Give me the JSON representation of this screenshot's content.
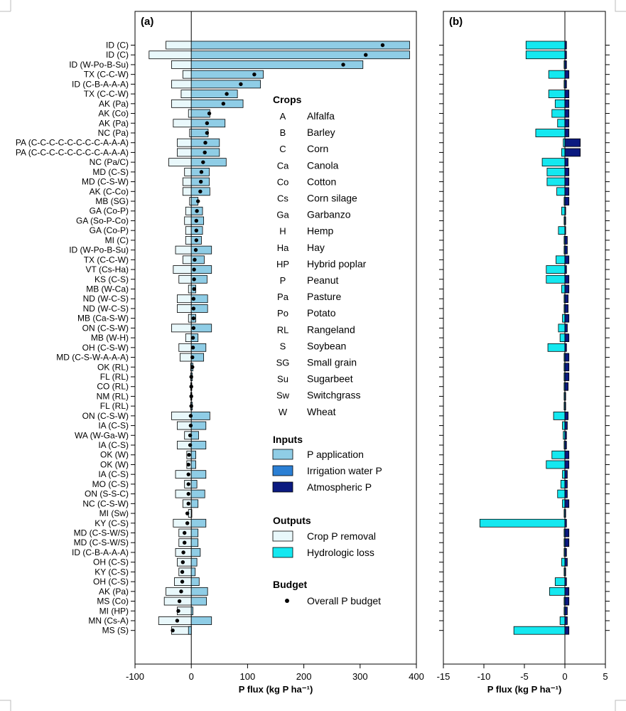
{
  "chart_data": [
    {
      "type": "bar",
      "orientation": "horizontal",
      "panel_label": "(a)",
      "xlabel": "P flux (kg P ha⁻¹)",
      "xlim": [
        -100,
        400
      ],
      "xticks": [
        -100,
        0,
        100,
        200,
        300,
        400
      ],
      "categories": [
        "ID (C)",
        "ID (C)",
        "ID (W-Po-B-Su)",
        "TX (C-C-W)",
        "ID (C-B-A-A-A)",
        "TX (C-C-W)",
        "AK (Pa)",
        "AK (Co)",
        "AK (Pa)",
        "NC (Pa)",
        "PA (C-C-C-C-C-C-C-C-A-A-A)",
        "PA (C-C-C-C-C-C-C-C-A-A-A)",
        "NC (Pa/C)",
        "MD (C-S)",
        "MD (C-S-W)",
        "AK (C-Co)",
        "MB (SG)",
        "GA (Co-P)",
        "GA (So-P-Co)",
        "GA (Co-P)",
        "MI (C)",
        "ID (W-Po-B-Su)",
        "TX (C-C-W)",
        "VT (Cs-Ha)",
        "KS (C-S)",
        "MB (W-Ca)",
        "ND (W-C-S)",
        "ND (W-C-S)",
        "MB (Ca-S-W)",
        "ON (C-S-W)",
        "MB (W-H)",
        "OH (C-S-W)",
        "MD (C-S-W-A-A-A)",
        "OK (RL)",
        "FL (RL)",
        "CO (RL)",
        "NM (RL)",
        "FL (RL)",
        "ON (C-S-W)",
        "IA (C-S)",
        "WA (W-Ga-W)",
        "IA (C-S)",
        "OK (W)",
        "OK (W)",
        "IA (C-S)",
        "MO (C-S)",
        "ON (S-S-C)",
        "NC (C-S-W)",
        "MI (Sw)",
        "KY (C-S)",
        "MD (C-S-W/S)",
        "MD (C-S-W/S)",
        "ID (C-B-A-A-A)",
        "OH (C-S)",
        "KY (C-S)",
        "OH (C-S)",
        "AK (Pa)",
        "MS (Co)",
        "MI (HP)",
        "MN (Cs-A)",
        "MS (S)"
      ],
      "series": [
        {
          "name": "P application",
          "values": [
            388,
            388,
            305,
            128,
            123,
            82,
            92,
            33,
            60,
            30,
            50,
            50,
            62,
            32,
            32,
            33,
            12,
            20,
            22,
            20,
            18,
            36,
            23,
            36,
            28,
            8,
            29,
            29,
            8,
            36,
            12,
            26,
            22,
            3,
            2,
            1,
            1,
            2,
            33,
            26,
            13,
            26,
            8,
            8,
            26,
            10,
            24,
            12,
            1,
            26,
            12,
            12,
            16,
            10,
            7,
            14,
            29,
            27,
            3,
            36,
            -5
          ]
        },
        {
          "name": "Crop P removal",
          "values": [
            -45,
            -75,
            -35,
            -15,
            -35,
            -18,
            -35,
            -5,
            -32,
            -3,
            -25,
            -25,
            -40,
            -12,
            -15,
            -15,
            -3,
            -10,
            -12,
            -10,
            -10,
            -28,
            -15,
            -32,
            -22,
            -5,
            -25,
            -25,
            -5,
            -35,
            -10,
            -22,
            -20,
            -1,
            -1,
            -1,
            -1,
            -1,
            -35,
            -25,
            -12,
            -25,
            -8,
            -8,
            -28,
            -12,
            -28,
            -15,
            -5,
            -32,
            -22,
            -22,
            -28,
            -25,
            -22,
            -30,
            -45,
            -48,
            -25,
            -58,
            -35
          ]
        },
        {
          "name": "Overall P budget",
          "values": [
            340,
            310,
            270,
            112,
            88,
            63,
            57,
            32,
            28,
            28,
            25,
            24,
            21,
            18,
            17,
            16,
            12,
            10,
            9,
            9,
            9,
            8,
            6,
            5,
            5,
            5,
            4,
            4,
            4,
            4,
            3,
            3,
            2,
            2,
            0,
            0,
            0,
            0,
            -1,
            -1,
            -2,
            -2,
            -4,
            -5,
            -5,
            -5,
            -5,
            -5,
            -7,
            -7,
            -12,
            -12,
            -14,
            -15,
            -16,
            -16,
            -18,
            -21,
            -23,
            -25,
            -33
          ]
        }
      ]
    },
    {
      "type": "bar",
      "orientation": "horizontal",
      "panel_label": "(b)",
      "xlabel": "P flux (kg P ha⁻¹)",
      "xlim": [
        -15,
        5
      ],
      "xticks": [
        -15,
        -10,
        -5,
        0,
        5
      ],
      "series": [
        {
          "name": "Hydrologic loss",
          "values": [
            -4.8,
            -4.8,
            -0.1,
            -2.0,
            -0.1,
            -2.0,
            -1.2,
            -1.6,
            -0.9,
            -3.6,
            -0.2,
            -0.4,
            -2.8,
            -2.2,
            -2.2,
            -1.0,
            -0.1,
            -0.4,
            -0.1,
            -0.8,
            -0.1,
            -0.1,
            -1.1,
            -2.3,
            -2.3,
            -0.4,
            -0.1,
            -0.1,
            -0.3,
            -0.8,
            -0.6,
            -2.1,
            -0.1,
            -0.1,
            -0.1,
            -0.1,
            -0.1,
            -0.1,
            -1.4,
            -0.3,
            -0.2,
            -0.1,
            -1.6,
            -2.3,
            -0.3,
            -0.5,
            -0.9,
            -0.3,
            -0.1,
            -10.5,
            -0.1,
            -0.1,
            -0.1,
            -0.4,
            -0.1,
            -1.2,
            -1.9,
            -0.1,
            -0.1,
            -0.6,
            -6.3
          ]
        },
        {
          "name": "Atmospheric P",
          "values": [
            0.2,
            0.2,
            0.2,
            0.5,
            0.2,
            0.5,
            0.5,
            0.5,
            0.5,
            0.5,
            1.9,
            1.9,
            0.4,
            0.5,
            0.5,
            0.5,
            0.5,
            0.1,
            0.1,
            0.1,
            0.3,
            0.3,
            0.5,
            0.2,
            0.5,
            0.5,
            0.4,
            0.4,
            0.5,
            0.3,
            0.5,
            0.2,
            0.5,
            0.5,
            0.5,
            0.4,
            0.1,
            0.1,
            0.4,
            0.3,
            0.2,
            0.2,
            0.5,
            0.5,
            0.3,
            0.3,
            0.3,
            0.5,
            0.1,
            0.2,
            0.5,
            0.5,
            0.2,
            0.3,
            0.1,
            0.2,
            0.5,
            0.5,
            0.3,
            0.3,
            0.5
          ]
        },
        {
          "name": "Irrigation water P",
          "values": [
            0,
            0,
            0,
            0,
            0,
            0,
            0,
            0,
            0,
            0,
            0,
            0,
            0,
            0,
            0,
            0,
            0,
            0,
            0,
            0,
            0,
            0,
            0,
            0,
            0,
            0,
            0,
            0,
            0,
            0,
            0,
            0,
            0,
            0,
            0,
            0,
            0,
            0,
            0,
            0,
            0,
            0,
            0,
            0,
            0,
            0,
            0,
            0,
            0,
            0,
            0,
            0,
            0,
            0,
            0,
            0,
            0,
            0,
            0,
            0,
            0
          ]
        }
      ]
    }
  ],
  "legend": {
    "crops_title": "Crops",
    "crops": [
      {
        "abbr": "A",
        "name": "Alfalfa"
      },
      {
        "abbr": "B",
        "name": "Barley"
      },
      {
        "abbr": "C",
        "name": "Corn"
      },
      {
        "abbr": "Ca",
        "name": "Canola"
      },
      {
        "abbr": "Co",
        "name": "Cotton"
      },
      {
        "abbr": "Cs",
        "name": "Corn silage"
      },
      {
        "abbr": "Ga",
        "name": "Garbanzo"
      },
      {
        "abbr": "H",
        "name": "Hemp"
      },
      {
        "abbr": "Ha",
        "name": "Hay"
      },
      {
        "abbr": "HP",
        "name": "Hybrid poplar"
      },
      {
        "abbr": "P",
        "name": "Peanut"
      },
      {
        "abbr": "Pa",
        "name": "Pasture"
      },
      {
        "abbr": "Po",
        "name": "Potato"
      },
      {
        "abbr": "RL",
        "name": "Rangeland"
      },
      {
        "abbr": "S",
        "name": "Soybean"
      },
      {
        "abbr": "SG",
        "name": "Small grain"
      },
      {
        "abbr": "Su",
        "name": "Sugarbeet"
      },
      {
        "abbr": "Sw",
        "name": "Switchgrass"
      },
      {
        "abbr": "W",
        "name": "Wheat"
      }
    ],
    "inputs_title": "Inputs",
    "inputs": [
      {
        "name": "P application",
        "color": "#8fcde6"
      },
      {
        "name": "Irrigation water P",
        "color": "#2b7fd4"
      },
      {
        "name": "Atmospheric P",
        "color": "#0b1a80"
      }
    ],
    "outputs_title": "Outputs",
    "outputs": [
      {
        "name": "Crop P removal",
        "color": "#e9f8fb"
      },
      {
        "name": "Hydrologic loss",
        "color": "#14e8f0"
      }
    ],
    "budget_title": "Budget",
    "budget": [
      {
        "name": "Overall P budget",
        "color": "#000000"
      }
    ]
  }
}
